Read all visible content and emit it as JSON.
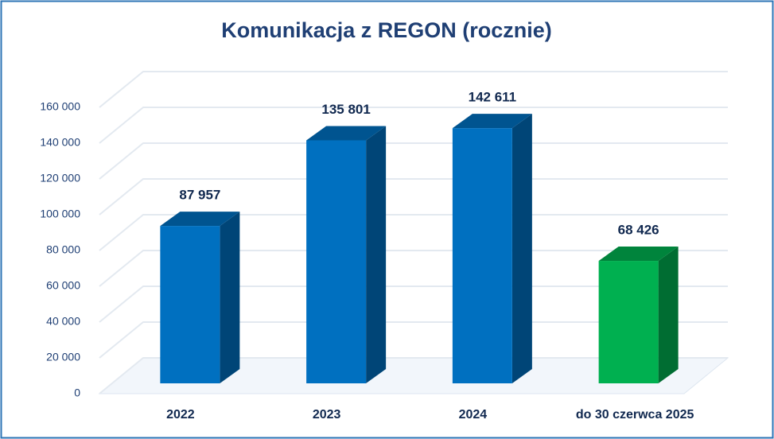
{
  "chart_data": {
    "type": "bar3d",
    "title": "Komunikacja z REGON (rocznie)",
    "categories": [
      "2022",
      "2023",
      "2024",
      "do 30 czerwca 2025"
    ],
    "values": [
      87957,
      135801,
      142611,
      68426
    ],
    "value_labels": [
      "87 957",
      "135 801",
      "142 611",
      "68 426"
    ],
    "colors": [
      "#0070c0",
      "#0070c0",
      "#0070c0",
      "#00b050"
    ],
    "ylim": [
      0,
      160000
    ],
    "yticks": [
      0,
      {
        "value": 20000,
        "label": "20 000"
      },
      {
        "value": 40000,
        "label": "40 000"
      },
      {
        "value": 60000,
        "label": "60 000"
      },
      {
        "value": 80000,
        "label": "80 000"
      },
      {
        "value": 100000,
        "label": "100 000"
      },
      {
        "value": 120000,
        "label": "120 000"
      },
      {
        "value": 140000,
        "label": "140 000"
      },
      {
        "value": 160000,
        "label": "160 000"
      }
    ],
    "grid": true
  }
}
